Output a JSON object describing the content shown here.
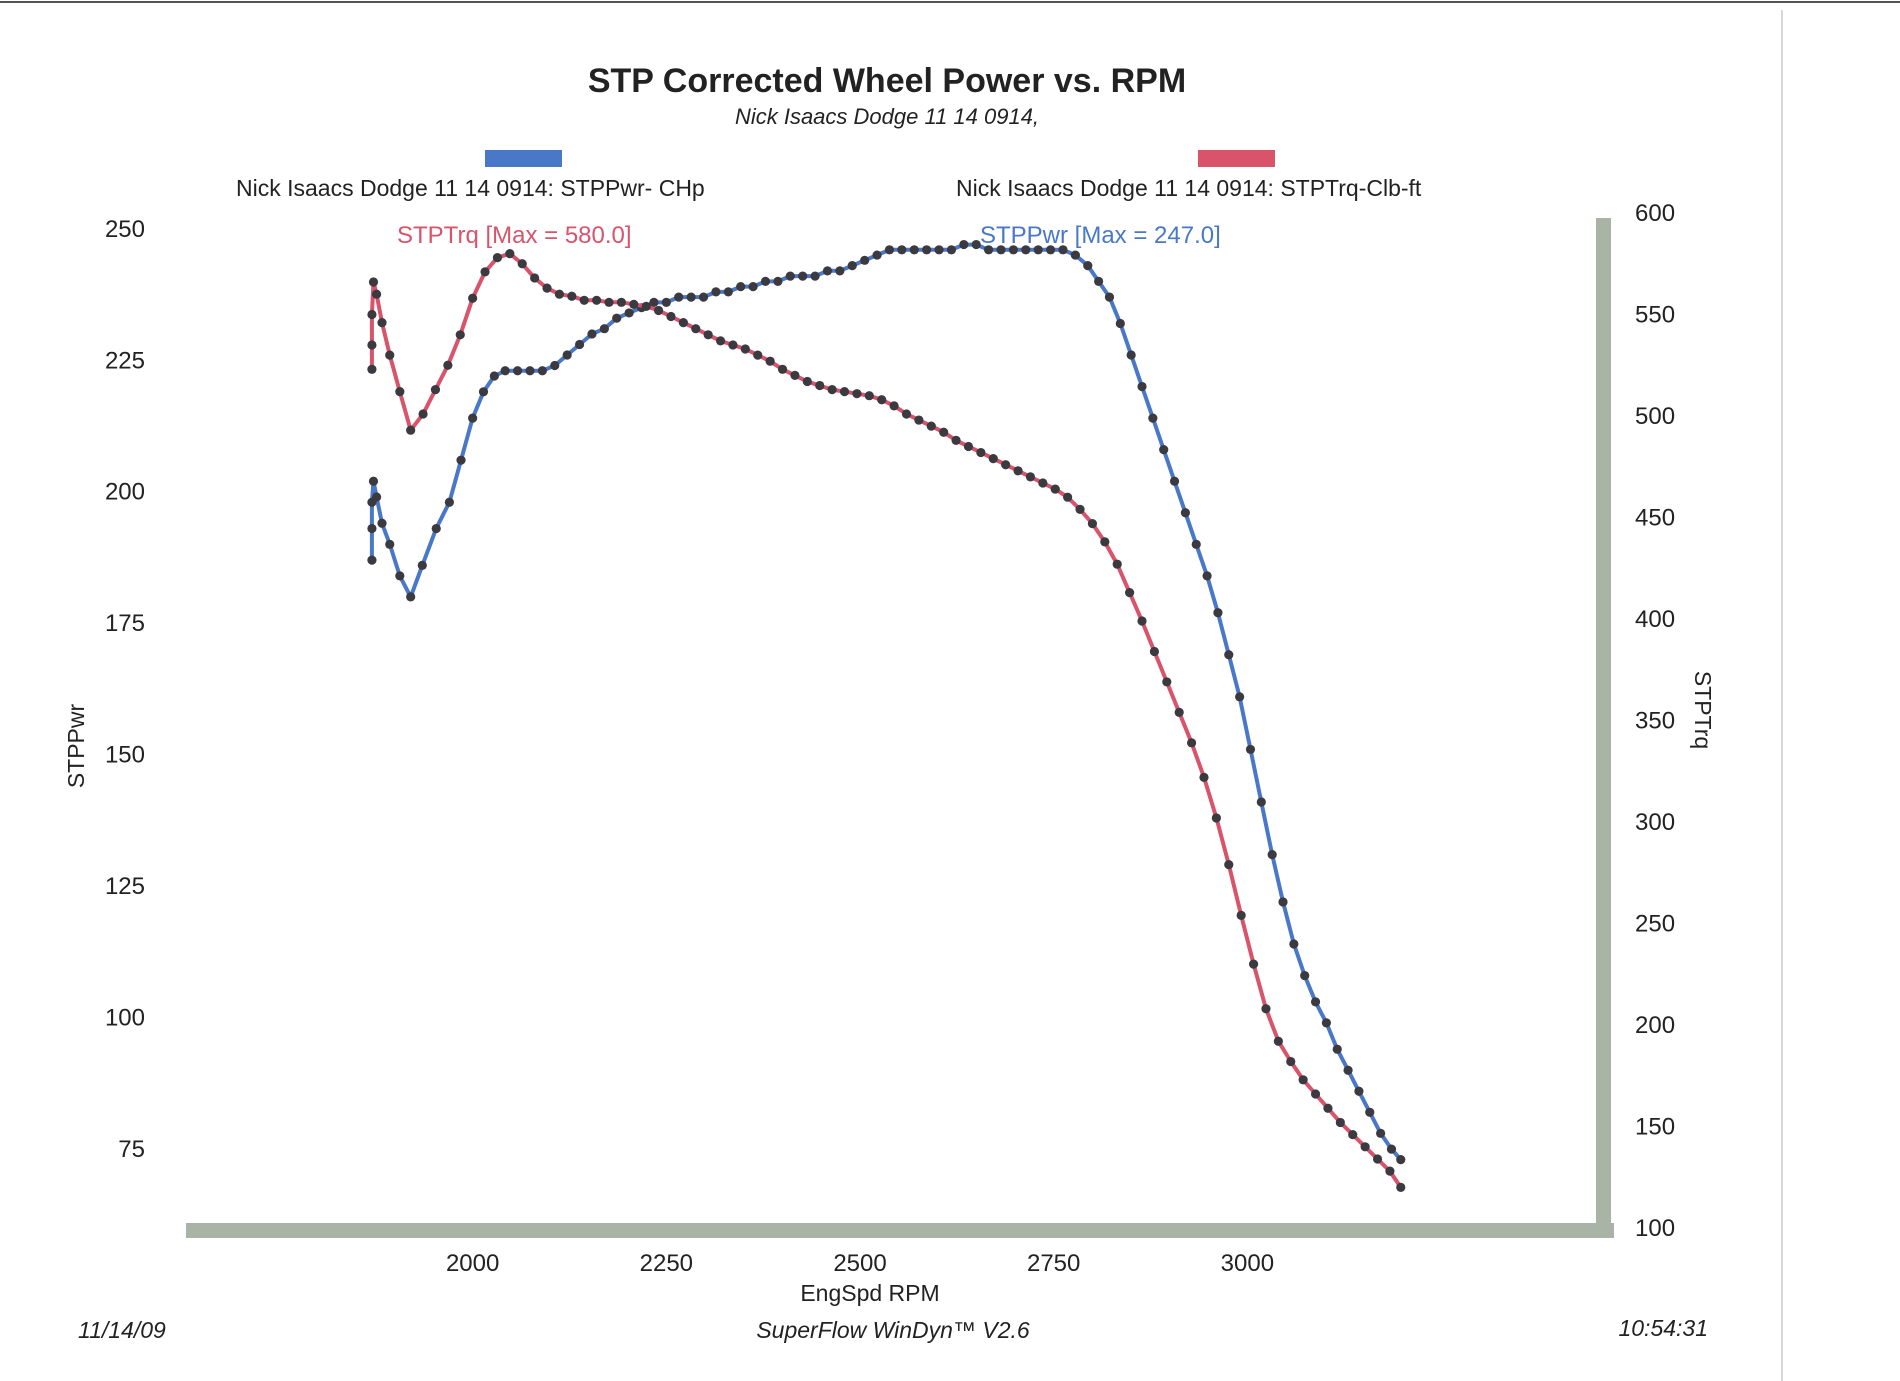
{
  "page": {
    "date": "11/14/09",
    "software": "SuperFlow WinDyn™ V2.6",
    "time": "10:54:31"
  },
  "chart_data": {
    "type": "line",
    "title": "STP Corrected Wheel Power vs. RPM",
    "subtitle": "Nick Isaacs Dodge 11 14 0914,",
    "xlabel": "EngSpd  RPM",
    "ylabel_left": "STPPwr",
    "ylabel_right": "STPTrq",
    "xlim": [
      1630,
      3450
    ],
    "ylim_left": [
      60,
      253
    ],
    "ylim_right": [
      100,
      600
    ],
    "x_ticks": [
      2000,
      2250,
      2500,
      2750,
      3000
    ],
    "y_ticks_left": [
      75,
      100,
      125,
      150,
      175,
      200,
      225,
      250
    ],
    "y_ticks_right": [
      100,
      150,
      200,
      250,
      300,
      350,
      400,
      450,
      500,
      550,
      600
    ],
    "colors": {
      "power": "#4a78c8",
      "torque": "#d9536a",
      "frame": "#a9b4a6",
      "dots": "#3a3a40"
    },
    "series": [
      {
        "name": "STPPwr",
        "axis": "left",
        "legend": "Nick Isaacs Dodge 11 14 0914: STPPwr- CHp",
        "max_label": "STPPwr [Max = 247.0]",
        "points": [
          [
            1870,
            187
          ],
          [
            1870,
            193
          ],
          [
            1870,
            198
          ],
          [
            1872,
            202
          ],
          [
            1876,
            199
          ],
          [
            1883,
            194
          ],
          [
            1893,
            190
          ],
          [
            1906,
            184
          ],
          [
            1920,
            180
          ],
          [
            1935,
            186
          ],
          [
            1953,
            193
          ],
          [
            1970,
            198
          ],
          [
            1985,
            206
          ],
          [
            2000,
            214
          ],
          [
            2014,
            219
          ],
          [
            2028,
            222
          ],
          [
            2042,
            223
          ],
          [
            2058,
            223
          ],
          [
            2074,
            223
          ],
          [
            2090,
            223
          ],
          [
            2106,
            224
          ],
          [
            2122,
            226
          ],
          [
            2138,
            228
          ],
          [
            2154,
            230
          ],
          [
            2170,
            231
          ],
          [
            2186,
            233
          ],
          [
            2202,
            234
          ],
          [
            2218,
            235
          ],
          [
            2234,
            236
          ],
          [
            2250,
            236
          ],
          [
            2266,
            237
          ],
          [
            2282,
            237
          ],
          [
            2298,
            237
          ],
          [
            2314,
            238
          ],
          [
            2330,
            238
          ],
          [
            2346,
            239
          ],
          [
            2362,
            239
          ],
          [
            2378,
            240
          ],
          [
            2394,
            240
          ],
          [
            2410,
            241
          ],
          [
            2426,
            241
          ],
          [
            2442,
            241
          ],
          [
            2458,
            242
          ],
          [
            2474,
            242
          ],
          [
            2490,
            243
          ],
          [
            2506,
            244
          ],
          [
            2522,
            245
          ],
          [
            2538,
            246
          ],
          [
            2554,
            246
          ],
          [
            2570,
            246
          ],
          [
            2586,
            246
          ],
          [
            2602,
            246
          ],
          [
            2618,
            246
          ],
          [
            2634,
            247
          ],
          [
            2650,
            247
          ],
          [
            2666,
            246
          ],
          [
            2682,
            246
          ],
          [
            2698,
            246
          ],
          [
            2714,
            246
          ],
          [
            2730,
            246
          ],
          [
            2746,
            246
          ],
          [
            2762,
            246
          ],
          [
            2778,
            245
          ],
          [
            2794,
            243
          ],
          [
            2808,
            240
          ],
          [
            2822,
            237
          ],
          [
            2836,
            232
          ],
          [
            2850,
            226
          ],
          [
            2864,
            220
          ],
          [
            2878,
            214
          ],
          [
            2892,
            208
          ],
          [
            2906,
            202
          ],
          [
            2920,
            196
          ],
          [
            2934,
            190
          ],
          [
            2948,
            184
          ],
          [
            2962,
            177
          ],
          [
            2976,
            169
          ],
          [
            2990,
            161
          ],
          [
            3004,
            151
          ],
          [
            3018,
            141
          ],
          [
            3032,
            131
          ],
          [
            3046,
            122
          ],
          [
            3060,
            114
          ],
          [
            3074,
            108
          ],
          [
            3088,
            103
          ],
          [
            3102,
            99
          ],
          [
            3116,
            94
          ],
          [
            3130,
            90
          ],
          [
            3144,
            86
          ],
          [
            3158,
            82
          ],
          [
            3172,
            78
          ],
          [
            3186,
            75
          ],
          [
            3198,
            73
          ]
        ]
      },
      {
        "name": "STPTrq",
        "axis": "right",
        "legend": "Nick Isaacs Dodge 11 14 0914: STPTrq-Clb-ft",
        "max_label": "STPTrq [Max = 580.0]",
        "points": [
          [
            1870,
            523
          ],
          [
            1870,
            535
          ],
          [
            1870,
            550
          ],
          [
            1872,
            566
          ],
          [
            1876,
            560
          ],
          [
            1883,
            546
          ],
          [
            1893,
            530
          ],
          [
            1906,
            512
          ],
          [
            1920,
            493
          ],
          [
            1936,
            501
          ],
          [
            1952,
            513
          ],
          [
            1968,
            525
          ],
          [
            1984,
            540
          ],
          [
            2000,
            558
          ],
          [
            2016,
            571
          ],
          [
            2032,
            578
          ],
          [
            2048,
            580
          ],
          [
            2064,
            575
          ],
          [
            2080,
            568
          ],
          [
            2096,
            563
          ],
          [
            2112,
            560
          ],
          [
            2128,
            559
          ],
          [
            2144,
            557
          ],
          [
            2160,
            557
          ],
          [
            2176,
            556
          ],
          [
            2192,
            556
          ],
          [
            2208,
            555
          ],
          [
            2224,
            554
          ],
          [
            2240,
            552
          ],
          [
            2256,
            549
          ],
          [
            2272,
            546
          ],
          [
            2288,
            543
          ],
          [
            2304,
            540
          ],
          [
            2320,
            537
          ],
          [
            2336,
            535
          ],
          [
            2352,
            533
          ],
          [
            2368,
            530
          ],
          [
            2384,
            527
          ],
          [
            2400,
            523
          ],
          [
            2416,
            520
          ],
          [
            2432,
            517
          ],
          [
            2448,
            515
          ],
          [
            2464,
            513
          ],
          [
            2480,
            512
          ],
          [
            2496,
            511
          ],
          [
            2512,
            510
          ],
          [
            2528,
            508
          ],
          [
            2544,
            505
          ],
          [
            2560,
            501
          ],
          [
            2576,
            498
          ],
          [
            2592,
            495
          ],
          [
            2608,
            492
          ],
          [
            2624,
            488
          ],
          [
            2640,
            485
          ],
          [
            2656,
            482
          ],
          [
            2672,
            479
          ],
          [
            2688,
            476
          ],
          [
            2704,
            473
          ],
          [
            2720,
            470
          ],
          [
            2736,
            467
          ],
          [
            2752,
            464
          ],
          [
            2768,
            460
          ],
          [
            2784,
            454
          ],
          [
            2800,
            447
          ],
          [
            2816,
            438
          ],
          [
            2832,
            427
          ],
          [
            2848,
            413
          ],
          [
            2864,
            399
          ],
          [
            2880,
            384
          ],
          [
            2896,
            369
          ],
          [
            2912,
            354
          ],
          [
            2928,
            339
          ],
          [
            2944,
            322
          ],
          [
            2960,
            302
          ],
          [
            2976,
            279
          ],
          [
            2992,
            254
          ],
          [
            3008,
            230
          ],
          [
            3024,
            208
          ],
          [
            3040,
            192
          ],
          [
            3056,
            182
          ],
          [
            3072,
            173
          ],
          [
            3088,
            166
          ],
          [
            3104,
            159
          ],
          [
            3120,
            152
          ],
          [
            3136,
            146
          ],
          [
            3152,
            140
          ],
          [
            3168,
            134
          ],
          [
            3184,
            128
          ],
          [
            3198,
            120
          ]
        ]
      }
    ]
  }
}
